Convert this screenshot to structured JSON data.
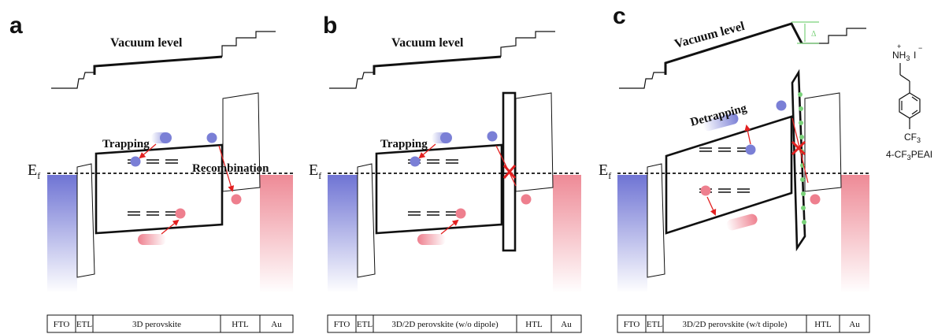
{
  "panels": [
    {
      "letter": "a",
      "vacuum_label": "Vacuum level",
      "fermi_label": "E",
      "fermi_sub": "f",
      "labels": [
        "Trapping",
        "Recombination"
      ],
      "layers": [
        "FTO",
        "ETL",
        "3D perovskite",
        "HTL",
        "Au"
      ]
    },
    {
      "letter": "b",
      "vacuum_label": "Vacuum level",
      "fermi_label": "E",
      "fermi_sub": "f",
      "labels": [
        "Trapping"
      ],
      "layers": [
        "FTO",
        "ETL",
        "3D/2D perovskite (w/o dipole)",
        "HTL",
        "Au"
      ]
    },
    {
      "letter": "c",
      "vacuum_label": "Vacuum level",
      "fermi_label": "E",
      "fermi_sub": "f",
      "labels": [
        "Detrapping"
      ],
      "layers": [
        "FTO",
        "ETL",
        "3D/2D perovskite (w/t dipole)",
        "HTL",
        "Au"
      ],
      "delta_symbol": "Δ"
    }
  ],
  "molecule": {
    "ammonium": "NH",
    "ammonium_sub": "3",
    "ammonium_charge": "+",
    "iodide": "I",
    "iodide_charge": "−",
    "substituent": "CF",
    "substituent_sub": "3",
    "name_prefix": "4-CF",
    "name_sub": "3",
    "name_suffix": "PEAI"
  },
  "colors": {
    "electron": "#7a7fd6",
    "hole": "#ee7f8e",
    "arrow": "#e22020",
    "fto_blue": "#6f74d4",
    "au_red": "#ee8a96",
    "dipole_green": "#7ad27a"
  }
}
